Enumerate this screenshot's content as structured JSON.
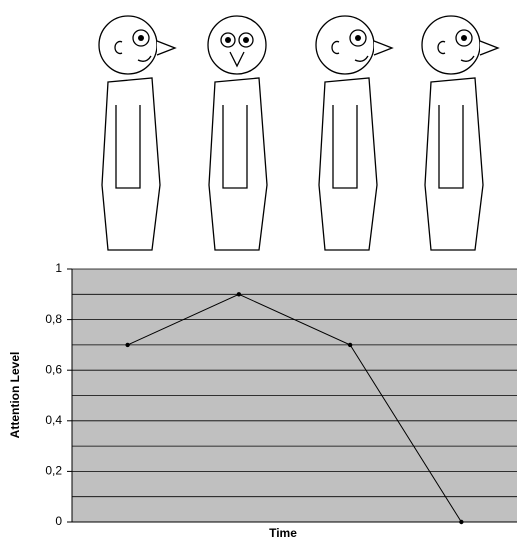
{
  "chart_data": {
    "type": "line",
    "x_label": "Time",
    "y_label": "Attention Level",
    "categories": [
      null,
      null,
      null,
      null
    ],
    "values": [
      0.7,
      0.9,
      0.7,
      0
    ],
    "color": "#000000",
    "plot_background": "#c0c0c0",
    "ylim": [
      0,
      1
    ],
    "yticks": [
      0,
      {
        "value": 0.2,
        "label": "0,2"
      },
      {
        "value": 0.4,
        "label": "0,4"
      },
      {
        "value": 0.6,
        "label": "0,6"
      },
      {
        "value": 0.8,
        "label": "0,8"
      },
      1
    ],
    "minor_yticks": [
      0.1,
      0.3,
      0.5,
      0.7,
      0.9
    ],
    "grid": true
  }
}
